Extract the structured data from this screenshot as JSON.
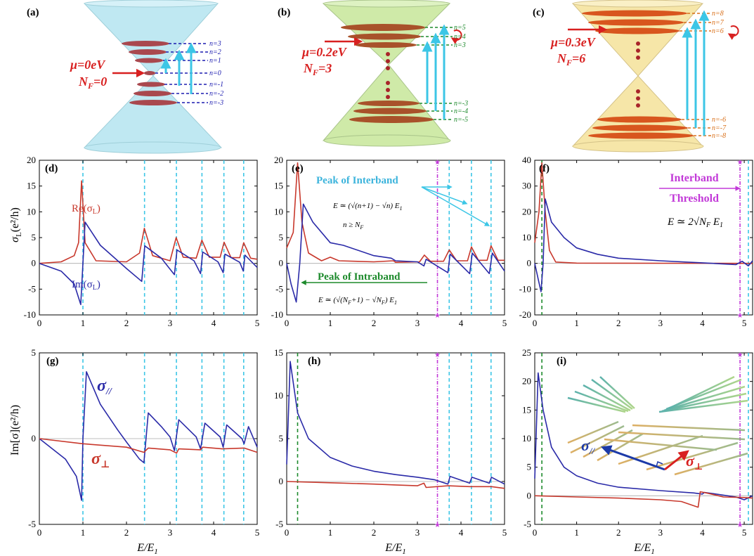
{
  "figure": {
    "panel_labels": [
      "(a)",
      "(b)",
      "(c)",
      "(d)",
      "(e)",
      "(f)",
      "(g)",
      "(h)",
      "(i)"
    ],
    "cones": [
      {
        "mu_label": "μ=0eV",
        "nf_label": "N",
        "nf_sub": "F",
        "nf_value": "=0",
        "level_labels": [
          "n=3",
          "n=2",
          "n=1",
          "n=0",
          "n=-1",
          "n=-2",
          "n=-3"
        ],
        "fill": "#bfe8f2",
        "level_color": "#1c1cb0"
      },
      {
        "mu_label": "μ=0.2eV",
        "nf_sub": "F",
        "nf_value": "=3",
        "level_labels": [
          "n=5",
          "n=4",
          "n=3",
          "n=-3",
          "n=-4",
          "n=-5"
        ],
        "fill": "#cfeaa8",
        "level_color": "#1d8a2c"
      },
      {
        "mu_label": "μ=0.3eV",
        "nf_sub": "F",
        "nf_value": "=6",
        "level_labels": [
          "n=8",
          "n=7",
          "n=6",
          "n=-6",
          "n=-7",
          "n=-8"
        ],
        "fill": "#f6e6a8",
        "level_color": "#d9701a"
      }
    ],
    "annotations": {
      "interband_peak": "Peak of Interband",
      "interband_formula_lhs": "E ≃ (√(n+1) − √n) E",
      "interband_formula_sub": "1",
      "interband_condition": "n ≥ N",
      "interband_condition_sub": "F",
      "intraband_peak": "Peak of Intraband",
      "intraband_formula_lhs": "E ≃ (√(N",
      "intraband_formula_rest": "+1) − √N",
      "intraband_formula_end": ") E",
      "threshold_line1": "Interband",
      "threshold_line2": "Threshold",
      "threshold_formula": "E ≃ 2√N",
      "threshold_formula_end": " E",
      "re_label": "Re(σ",
      "im_label": "Im(σ",
      "label_L": "L",
      "sigma_par": "σ",
      "par_sym": "//",
      "sigma_perp": "σ",
      "perp_sym": "⊥"
    },
    "axes": {
      "y_label_row1": "σ",
      "y_label_row1_sub": "L",
      "y_label_row1_units": "(e²/h)",
      "y_label_row2": "Im[σ](e²/h)",
      "x_label": "E/E",
      "x_label_sub": "1",
      "x_ticks": [
        "0",
        "1",
        "2",
        "3",
        "4",
        "5"
      ],
      "d_yticks": [
        "-10",
        "-5",
        "0",
        "5",
        "10",
        "15",
        "20"
      ],
      "e_yticks": [
        "-10",
        "-5",
        "0",
        "5",
        "10",
        "15",
        "20"
      ],
      "f_yticks": [
        "-20",
        "-10",
        "0",
        "10",
        "20",
        "30",
        "40"
      ],
      "g_yticks": [
        "-5",
        "0",
        "5"
      ],
      "h_yticks": [
        "-5",
        "0",
        "5",
        "10",
        "15"
      ],
      "i_yticks": [
        "-5",
        "0",
        "5",
        "10",
        "15",
        "20",
        "25"
      ]
    },
    "colors": {
      "red": "#c8382c",
      "blue": "#2a2aa8",
      "cyan": "#3cc6e6",
      "green": "#1d8a2c",
      "magenta": "#c23ad8",
      "label_red": "#d82020"
    }
  },
  "chart_data": [
    {
      "panel": "(d)",
      "type": "line",
      "xlim": [
        0,
        5
      ],
      "ylim": [
        -10,
        20
      ],
      "vlines_cyan": [
        1,
        2.414,
        3.146,
        3.732,
        4.236,
        4.69
      ],
      "series": [
        {
          "name": "Re(σL)",
          "points": [
            [
              0,
              0
            ],
            [
              0.5,
              0.3
            ],
            [
              0.8,
              1.5
            ],
            [
              0.9,
              4
            ],
            [
              0.97,
              16
            ],
            [
              1.05,
              4
            ],
            [
              1.3,
              0.5
            ],
            [
              2.0,
              0.3
            ],
            [
              2.3,
              2
            ],
            [
              2.41,
              6.8
            ],
            [
              2.6,
              1.5
            ],
            [
              3.0,
              0.5
            ],
            [
              3.14,
              5
            ],
            [
              3.3,
              1.2
            ],
            [
              3.6,
              1
            ],
            [
              3.73,
              4.5
            ],
            [
              3.9,
              1.2
            ],
            [
              4.15,
              1.2
            ],
            [
              4.24,
              4.1
            ],
            [
              4.4,
              1.1
            ],
            [
              4.6,
              1.1
            ],
            [
              4.69,
              4
            ],
            [
              4.85,
              1
            ],
            [
              5,
              0.8
            ]
          ]
        },
        {
          "name": "Im(σL)",
          "points": [
            [
              0,
              0
            ],
            [
              0.5,
              -1.5
            ],
            [
              0.8,
              -4
            ],
            [
              0.95,
              -8
            ],
            [
              1.0,
              0
            ],
            [
              1.05,
              8
            ],
            [
              1.4,
              3.5
            ],
            [
              2.0,
              -1
            ],
            [
              2.35,
              -3.5
            ],
            [
              2.42,
              3.4
            ],
            [
              2.8,
              1
            ],
            [
              3.1,
              -2.2
            ],
            [
              3.16,
              2.6
            ],
            [
              3.55,
              0.5
            ],
            [
              3.7,
              -2
            ],
            [
              3.75,
              2.2
            ],
            [
              4.1,
              0.3
            ],
            [
              4.22,
              -1.8
            ],
            [
              4.26,
              1.8
            ],
            [
              4.6,
              0.2
            ],
            [
              4.68,
              -1.5
            ],
            [
              4.72,
              1.6
            ],
            [
              5,
              -0.8
            ]
          ]
        }
      ]
    },
    {
      "panel": "(e)",
      "type": "line",
      "xlim": [
        0,
        5
      ],
      "ylim": [
        -10,
        20
      ],
      "vlines_cyan": [
        3.73,
        4.24,
        4.69
      ],
      "vlines_magenta": [
        3.46
      ],
      "series": [
        {
          "name": "Re",
          "points": [
            [
              0,
              3
            ],
            [
              0.15,
              6
            ],
            [
              0.25,
              19.5
            ],
            [
              0.35,
              8
            ],
            [
              0.5,
              2
            ],
            [
              0.8,
              0.5
            ],
            [
              1.0,
              1.2
            ],
            [
              1.2,
              0.5
            ],
            [
              2.0,
              0.3
            ],
            [
              2.45,
              0.5
            ],
            [
              2.5,
              0.2
            ],
            [
              3.05,
              0.3
            ],
            [
              3.16,
              1.6
            ],
            [
              3.3,
              0.4
            ],
            [
              3.6,
              0.4
            ],
            [
              3.73,
              2.6
            ],
            [
              3.9,
              0.5
            ],
            [
              4.15,
              0.5
            ],
            [
              4.24,
              3.2
            ],
            [
              4.4,
              0.6
            ],
            [
              4.6,
              0.6
            ],
            [
              4.69,
              3.4
            ],
            [
              4.85,
              0.6
            ],
            [
              5,
              0.6
            ]
          ]
        },
        {
          "name": "Im",
          "points": [
            [
              0,
              0
            ],
            [
              0.1,
              -4
            ],
            [
              0.22,
              -7.5
            ],
            [
              0.3,
              0
            ],
            [
              0.38,
              11.5
            ],
            [
              0.6,
              8
            ],
            [
              1.0,
              4
            ],
            [
              1.3,
              3.5
            ],
            [
              2.0,
              1.5
            ],
            [
              2.4,
              1
            ],
            [
              2.5,
              0.5
            ],
            [
              3.0,
              0.3
            ],
            [
              3.15,
              -0.5
            ],
            [
              3.2,
              0.8
            ],
            [
              3.7,
              -1.8
            ],
            [
              3.75,
              1.8
            ],
            [
              4.2,
              -2
            ],
            [
              4.26,
              2
            ],
            [
              4.65,
              -2
            ],
            [
              4.72,
              2
            ],
            [
              5,
              -1.5
            ]
          ]
        }
      ]
    },
    {
      "panel": "(f)",
      "type": "line",
      "xlim": [
        0,
        5.2
      ],
      "ylim": [
        -20,
        40
      ],
      "vlines_green": [
        0.17
      ],
      "vlines_magenta": [
        4.9
      ],
      "vlines_cyan": [
        5.1
      ],
      "series": [
        {
          "name": "Re",
          "points": [
            [
              0,
              8
            ],
            [
              0.1,
              20
            ],
            [
              0.17,
              39
            ],
            [
              0.25,
              20
            ],
            [
              0.35,
              5
            ],
            [
              0.5,
              0.5
            ],
            [
              1,
              0.1
            ],
            [
              5.2,
              0
            ]
          ]
        },
        {
          "name": "Im",
          "points": [
            [
              0,
              0
            ],
            [
              0.08,
              -6
            ],
            [
              0.15,
              -11
            ],
            [
              0.2,
              0
            ],
            [
              0.25,
              25
            ],
            [
              0.4,
              16
            ],
            [
              0.7,
              10
            ],
            [
              1.0,
              6
            ],
            [
              1.5,
              3.5
            ],
            [
              2.0,
              2
            ],
            [
              3,
              1
            ],
            [
              4,
              0.2
            ],
            [
              4.8,
              -0.5
            ],
            [
              4.95,
              0.8
            ],
            [
              5.1,
              -1
            ],
            [
              5.2,
              1
            ]
          ]
        }
      ]
    },
    {
      "panel": "(g)",
      "type": "line",
      "xlim": [
        0,
        5
      ],
      "ylim": [
        -5,
        5
      ],
      "vlines_cyan": [
        1,
        2.414,
        3.146,
        3.732,
        4.236,
        4.69
      ],
      "series": [
        {
          "name": "σ//",
          "points": [
            [
              0,
              0
            ],
            [
              0.3,
              -0.6
            ],
            [
              0.6,
              -1.2
            ],
            [
              0.85,
              -2.2
            ],
            [
              0.97,
              -3.6
            ],
            [
              1.0,
              0
            ],
            [
              1.08,
              3.9
            ],
            [
              1.4,
              2
            ],
            [
              1.8,
              0.5
            ],
            [
              2.0,
              -0.2
            ],
            [
              2.3,
              -1.2
            ],
            [
              2.4,
              -1.4
            ],
            [
              2.5,
              1.5
            ],
            [
              2.8,
              0.7
            ],
            [
              3.0,
              0.1
            ],
            [
              3.1,
              -0.7
            ],
            [
              3.2,
              1.1
            ],
            [
              3.6,
              0.1
            ],
            [
              3.7,
              -0.6
            ],
            [
              3.8,
              0.9
            ],
            [
              4.15,
              0.1
            ],
            [
              4.22,
              -0.5
            ],
            [
              4.3,
              0.8
            ],
            [
              4.65,
              0
            ],
            [
              4.7,
              -0.3
            ],
            [
              4.8,
              0.7
            ],
            [
              5,
              -0.5
            ]
          ]
        },
        {
          "name": "σ⊥",
          "points": [
            [
              0,
              0
            ],
            [
              1,
              -0.3
            ],
            [
              2,
              -0.5
            ],
            [
              2.4,
              -0.8
            ],
            [
              2.5,
              -0.55
            ],
            [
              3,
              -0.65
            ],
            [
              3.15,
              -0.85
            ],
            [
              3.2,
              -0.6
            ],
            [
              3.7,
              -0.65
            ],
            [
              3.75,
              -0.5
            ],
            [
              4.2,
              -0.6
            ],
            [
              4.7,
              -0.55
            ],
            [
              5,
              -0.8
            ]
          ]
        }
      ]
    },
    {
      "panel": "(h)",
      "type": "line",
      "xlim": [
        0,
        5
      ],
      "ylim": [
        -5,
        15
      ],
      "vlines_green": [
        0.25
      ],
      "vlines_magenta": [
        3.46
      ],
      "vlines_cyan": [
        3.73,
        4.24,
        4.69
      ],
      "series": [
        {
          "name": "σ//",
          "points": [
            [
              0,
              2
            ],
            [
              0.08,
              14
            ],
            [
              0.25,
              8
            ],
            [
              0.5,
              5
            ],
            [
              1,
              2.8
            ],
            [
              1.5,
              1.8
            ],
            [
              2,
              1.2
            ],
            [
              2.5,
              0.8
            ],
            [
              3,
              0.5
            ],
            [
              3.4,
              0.2
            ],
            [
              3.7,
              -0.3
            ],
            [
              3.75,
              0.6
            ],
            [
              4.2,
              -0.2
            ],
            [
              4.25,
              0.5
            ],
            [
              4.65,
              -0.2
            ],
            [
              4.7,
              0.5
            ],
            [
              5,
              -0.3
            ]
          ]
        },
        {
          "name": "σ⊥",
          "points": [
            [
              0,
              0
            ],
            [
              1,
              -0.15
            ],
            [
              2,
              -0.3
            ],
            [
              2.5,
              -0.4
            ],
            [
              3,
              -0.5
            ],
            [
              3.15,
              -0.2
            ],
            [
              3.2,
              -0.7
            ],
            [
              3.7,
              -0.5
            ],
            [
              4.2,
              -0.6
            ],
            [
              4.7,
              -0.6
            ],
            [
              5,
              -0.8
            ]
          ]
        }
      ]
    },
    {
      "panel": "(i)",
      "type": "line",
      "xlim": [
        0,
        5.2
      ],
      "ylim": [
        -5,
        25
      ],
      "vlines_green": [
        0.17
      ],
      "vlines_magenta": [
        4.9
      ],
      "vlines_cyan": [
        5.1
      ],
      "series": [
        {
          "name": "σ//",
          "points": [
            [
              0,
              3
            ],
            [
              0.08,
              21.5
            ],
            [
              0.2,
              15
            ],
            [
              0.4,
              8.5
            ],
            [
              0.7,
              5
            ],
            [
              1,
              3.5
            ],
            [
              1.5,
              2.2
            ],
            [
              2,
              1.5
            ],
            [
              3,
              0.9
            ],
            [
              3.8,
              0.5
            ],
            [
              4.0,
              0.3
            ],
            [
              4.05,
              0.6
            ],
            [
              4.8,
              -0.2
            ],
            [
              5,
              -0.7
            ],
            [
              5.2,
              0
            ]
          ]
        },
        {
          "name": "σ⊥",
          "points": [
            [
              0,
              0
            ],
            [
              1,
              -0.2
            ],
            [
              2,
              -0.4
            ],
            [
              3,
              -0.7
            ],
            [
              3.5,
              -1
            ],
            [
              3.9,
              -2
            ],
            [
              3.95,
              0.7
            ],
            [
              4.1,
              0.5
            ],
            [
              4.5,
              -0.2
            ],
            [
              5,
              -0.3
            ],
            [
              5.2,
              -0.4
            ]
          ]
        }
      ]
    }
  ]
}
